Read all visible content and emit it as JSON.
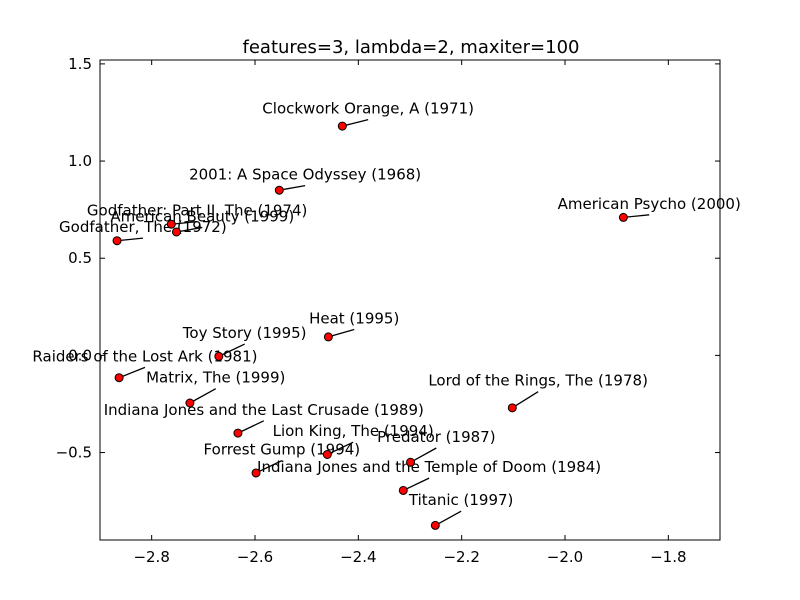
{
  "chart_data": {
    "type": "scatter",
    "title": "features=3, lambda=2, maxiter=100",
    "xlabel": "",
    "ylabel": "",
    "xlim": [
      -2.9,
      -1.7
    ],
    "ylim": [
      -0.95,
      1.52
    ],
    "xticks": [
      -2.8,
      -2.6,
      -2.4,
      -2.2,
      -2.0,
      -1.8
    ],
    "xtick_labels": [
      "−2.8",
      "−2.6",
      "−2.4",
      "−2.2",
      "−2.0",
      "−1.8"
    ],
    "yticks": [
      -0.5,
      0.0,
      0.5,
      1.0,
      1.5
    ],
    "ytick_labels": [
      "−0.5",
      "0.0",
      "0.5",
      "1.0",
      "1.5"
    ],
    "grid": false,
    "marker_color": "#ff0000",
    "points": [
      {
        "label": "Clockwork Orange, A (1971)",
        "x": -2.431,
        "y": 1.18,
        "label_x": -2.381,
        "label_y": 1.27
      },
      {
        "label": "2001: A Space Odyssey (1968)",
        "x": -2.553,
        "y": 0.85,
        "label_x": -2.503,
        "label_y": 0.93
      },
      {
        "label": "American Psycho (2000)",
        "x": -1.887,
        "y": 0.71,
        "label_x": -1.837,
        "label_y": 0.78
      },
      {
        "label": "Godfather: Part II, The (1974)",
        "x": -2.762,
        "y": 0.675,
        "label_x": -2.712,
        "label_y": 0.745
      },
      {
        "label": "American Beauty (1999)",
        "x": -2.752,
        "y": 0.635,
        "label_x": -2.702,
        "label_y": 0.715
      },
      {
        "label": "Godfather, The (1972)",
        "x": -2.867,
        "y": 0.59,
        "label_x": -2.817,
        "label_y": 0.66
      },
      {
        "label": "Heat (1995)",
        "x": -2.458,
        "y": 0.095,
        "label_x": -2.408,
        "label_y": 0.19
      },
      {
        "label": "Toy Story (1995)",
        "x": -2.67,
        "y": -0.005,
        "label_x": -2.62,
        "label_y": 0.115
      },
      {
        "label": "Raiders of the Lost Ark (1981)",
        "x": -2.863,
        "y": -0.115,
        "label_x": -2.813,
        "label_y": -0.005
      },
      {
        "label": "Matrix, The (1999)",
        "x": -2.726,
        "y": -0.245,
        "label_x": -2.676,
        "label_y": -0.115
      },
      {
        "label": "Lord of the Rings, The (1978)",
        "x": -2.102,
        "y": -0.27,
        "label_x": -2.052,
        "label_y": -0.13
      },
      {
        "label": "Indiana Jones and the Last Crusade (1989)",
        "x": -2.633,
        "y": -0.4,
        "label_x": -2.583,
        "label_y": -0.28
      },
      {
        "label": "Lion King, The (1994)",
        "x": -2.46,
        "y": -0.51,
        "label_x": -2.41,
        "label_y": -0.39
      },
      {
        "label": "Predator (1987)",
        "x": -2.299,
        "y": -0.55,
        "label_x": -2.249,
        "label_y": -0.42
      },
      {
        "label": "Forrest Gump (1994)",
        "x": -2.598,
        "y": -0.605,
        "label_x": -2.548,
        "label_y": -0.485
      },
      {
        "label": "Indiana Jones and the Temple of Doom (1984)",
        "x": -2.313,
        "y": -0.695,
        "label_x": -2.263,
        "label_y": -0.575
      },
      {
        "label": "Titanic (1997)",
        "x": -2.251,
        "y": -0.875,
        "label_x": -2.201,
        "label_y": -0.745
      }
    ]
  }
}
